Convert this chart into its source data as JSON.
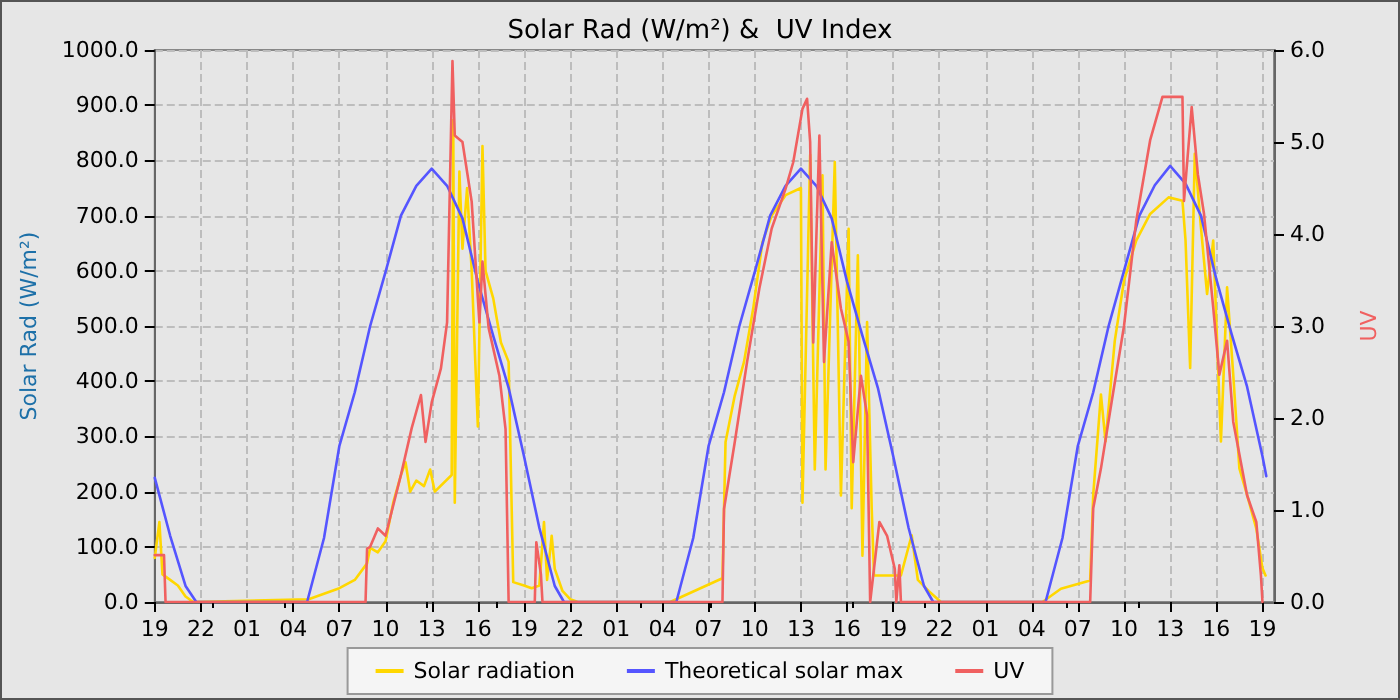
{
  "chart_data": {
    "type": "line",
    "title": "Solar Rad (W/m²) &  UV Index",
    "ylabel": "Solar Rad (W/m²)",
    "y2label": "UV",
    "xlim": [
      "--01-01T19:00",
      "--01-04T19:45"
    ],
    "xticks": [
      {
        "value": "--01-01T19:00",
        "label": "19"
      },
      {
        "value": "--01-01T22:00",
        "label": "22"
      },
      {
        "value": "--01-02T01:00",
        "label": "01"
      },
      {
        "value": "--01-02T04:00",
        "label": "04"
      },
      {
        "value": "--01-02T07:00",
        "label": "07"
      },
      {
        "value": "--01-02T10:00",
        "label": "10"
      },
      {
        "value": "--01-02T13:00",
        "label": "13"
      },
      {
        "value": "--01-02T16:00",
        "label": "16"
      },
      {
        "value": "--01-02T19:00",
        "label": "19"
      },
      {
        "value": "--01-02T22:00",
        "label": "22"
      },
      {
        "value": "--01-03T01:00",
        "label": "01"
      },
      {
        "value": "--01-03T04:00",
        "label": "04"
      },
      {
        "value": "--01-03T07:00",
        "label": "07"
      },
      {
        "value": "--01-03T10:00",
        "label": "10"
      },
      {
        "value": "--01-03T13:00",
        "label": "13"
      },
      {
        "value": "--01-03T16:00",
        "label": "16"
      },
      {
        "value": "--01-03T19:00",
        "label": "19"
      },
      {
        "value": "--01-03T22:00",
        "label": "22"
      },
      {
        "value": "--01-04T01:00",
        "label": "01"
      },
      {
        "value": "--01-04T04:00",
        "label": "04"
      },
      {
        "value": "--01-04T07:00",
        "label": "07"
      },
      {
        "value": "--01-04T10:00",
        "label": "10"
      },
      {
        "value": "--01-04T13:00",
        "label": "13"
      },
      {
        "value": "--01-04T16:00",
        "label": "16"
      },
      {
        "value": "--01-04T19:00",
        "label": "19"
      }
    ],
    "ylim": [
      0,
      1000
    ],
    "yticks": [
      {
        "value": 0,
        "label": "0.0"
      },
      {
        "value": 100,
        "label": "100.0"
      },
      {
        "value": 200,
        "label": "200.0"
      },
      {
        "value": 300,
        "label": "300.0"
      },
      {
        "value": 400,
        "label": "400.0"
      },
      {
        "value": 500,
        "label": "500.0"
      },
      {
        "value": 600,
        "label": "600.0"
      },
      {
        "value": 700,
        "label": "700.0"
      },
      {
        "value": 800,
        "label": "800.0"
      },
      {
        "value": 900,
        "label": "900.0"
      },
      {
        "value": 1000,
        "label": "1000.0"
      }
    ],
    "y2lim": [
      0,
      6
    ],
    "y2ticks": [
      {
        "value": 0,
        "label": "0.0"
      },
      {
        "value": 1,
        "label": "1.0"
      },
      {
        "value": 2,
        "label": "2.0"
      },
      {
        "value": 3,
        "label": "3.0"
      },
      {
        "value": 4,
        "label": "4.0"
      },
      {
        "value": 5,
        "label": "5.0"
      },
      {
        "value": 6,
        "label": "6.0"
      }
    ],
    "grid": true,
    "legend": "bottom",
    "marker": "none",
    "line_style": "solid",
    "series": [
      {
        "name": "Solar radiation",
        "color": "#ffd700",
        "x": [
          "--01-01T19:00",
          "--01-01T19:18",
          "--01-01T19:30",
          "--01-01T20:00",
          "--01-01T20:30",
          "--01-01T21:00",
          "--01-01T21:30",
          "--01-02T05:00",
          "--01-02T06:00",
          "--01-02T07:00",
          "--01-02T08:00",
          "--01-02T08:48",
          "--01-02T09:00",
          "--01-02T09:30",
          "--01-02T10:00",
          "--01-02T10:30",
          "--01-02T11:00",
          "--01-02T11:18",
          "--01-02T11:36",
          "--01-02T12:00",
          "--01-02T12:30",
          "--01-02T12:54",
          "--01-02T13:12",
          "--01-02T14:18",
          "--01-02T14:24",
          "--01-02T14:30",
          "--01-02T14:48",
          "--01-02T15:00",
          "--01-02T15:18",
          "--01-02T15:36",
          "--01-02T16:00",
          "--01-02T16:18",
          "--01-02T16:30",
          "--01-02T17:00",
          "--01-02T17:30",
          "--01-02T18:00",
          "--01-02T18:18",
          "--01-02T19:00",
          "--01-02T19:30",
          "--01-02T20:00",
          "--01-02T20:18",
          "--01-02T20:30",
          "--01-02T20:48",
          "--01-02T21:00",
          "--01-02T21:30",
          "--01-02T22:00",
          "--01-02T22:30",
          "--01-03T04:30",
          "--01-03T07:54",
          "--01-03T08:06",
          "--01-03T08:42",
          "--01-03T09:18",
          "--01-03T09:54",
          "--01-03T10:30",
          "--01-03T11:06",
          "--01-03T12:00",
          "--01-03T13:00",
          "--01-03T13:06",
          "--01-03T13:36",
          "--01-03T13:54",
          "--01-03T14:24",
          "--01-03T14:36",
          "--01-03T15:12",
          "--01-03T15:36",
          "--01-03T16:06",
          "--01-03T16:18",
          "--01-03T16:42",
          "--01-03T17:00",
          "--01-03T17:18",
          "--01-03T17:36",
          "--01-03T17:45",
          "--01-03T18:30",
          "--01-03T19:30",
          "--01-03T20:12",
          "--01-03T20:36",
          "--01-03T21:18",
          "--01-03T22:06",
          "--01-04T04:42",
          "--01-04T05:54",
          "--01-04T07:48",
          "--01-04T08:00",
          "--01-04T08:30",
          "--01-04T08:48",
          "--01-04T09:24",
          "--01-04T10:00",
          "--01-04T10:48",
          "--01-04T11:42",
          "--01-04T12:54",
          "--01-04T13:48",
          "--01-04T14:00",
          "--01-04T14:18",
          "--01-04T14:36",
          "--01-04T15:00",
          "--01-04T15:24",
          "--01-04T15:48",
          "--01-04T16:18",
          "--01-04T16:42",
          "--01-04T17:06",
          "--01-04T17:30",
          "--01-04T18:00",
          "--01-04T18:36",
          "--01-04T19:00",
          "--01-04T19:12"
        ],
        "values": [
          80,
          145,
          50,
          40,
          30,
          10,
          0,
          5,
          15,
          25,
          40,
          70,
          98,
          90,
          110,
          180,
          230,
          253,
          200,
          220,
          210,
          240,
          200,
          230,
          873,
          180,
          780,
          640,
          750,
          600,
          318,
          826,
          600,
          550,
          470,
          435,
          36,
          30,
          25,
          30,
          145,
          40,
          120,
          60,
          20,
          5,
          0,
          0,
          43,
          290,
          374,
          435,
          532,
          652,
          700,
          737,
          750,
          180,
          810,
          240,
          773,
          240,
          797,
          193,
          676,
          170,
          628,
          84,
          507,
          170,
          48,
          48,
          48,
          121,
          40,
          20,
          0,
          0,
          24,
          39,
          194,
          376,
          291,
          473,
          582,
          655,
          703,
          733,
          727,
          655,
          424,
          812,
          679,
          558,
          655,
          291,
          570,
          412,
          242,
          194,
          133,
          61,
          48
        ]
      },
      {
        "name": "Theoretical solar max",
        "color": "#5555ff",
        "x": [
          "--01-01T19:00",
          "--01-01T20:00",
          "--01-01T21:00",
          "--01-01T21:42",
          "--01-02T04:54",
          "--01-02T06:00",
          "--01-02T07:00",
          "--01-02T08:00",
          "--01-02T09:00",
          "--01-02T10:00",
          "--01-02T11:00",
          "--01-02T12:00",
          "--01-02T13:00",
          "--01-02T14:00",
          "--01-02T15:00",
          "--01-02T16:00",
          "--01-02T17:00",
          "--01-02T18:00",
          "--01-02T19:00",
          "--01-02T20:00",
          "--01-02T21:00",
          "--01-02T21:36",
          "--01-03T04:54",
          "--01-03T06:00",
          "--01-03T07:00",
          "--01-03T08:00",
          "--01-03T09:00",
          "--01-03T10:00",
          "--01-03T11:00",
          "--01-03T12:00",
          "--01-03T13:00",
          "--01-03T14:00",
          "--01-03T15:00",
          "--01-03T16:00",
          "--01-03T17:00",
          "--01-03T18:00",
          "--01-03T19:00",
          "--01-03T20:00",
          "--01-03T21:00",
          "--01-03T21:36",
          "--01-04T04:54",
          "--01-04T06:00",
          "--01-04T07:00",
          "--01-04T08:00",
          "--01-04T09:00",
          "--01-04T10:00",
          "--01-04T11:00",
          "--01-04T12:00",
          "--01-04T13:00",
          "--01-04T14:00",
          "--01-04T15:00",
          "--01-04T16:00",
          "--01-04T17:00",
          "--01-04T18:00",
          "--01-04T19:00",
          "--01-04T19:15"
        ],
        "values": [
          225,
          120,
          29,
          0,
          0,
          116,
          283,
          380,
          500,
          598,
          700,
          754,
          785,
          754,
          695,
          580,
          482,
          388,
          264,
          134,
          29,
          0,
          0,
          116,
          283,
          380,
          500,
          598,
          700,
          754,
          785,
          754,
          695,
          580,
          482,
          388,
          264,
          134,
          29,
          0,
          0,
          116,
          283,
          380,
          500,
          600,
          700,
          755,
          790,
          758,
          700,
          585,
          485,
          390,
          264,
          228
        ]
      },
      {
        "name": "UV",
        "color": "#f06060",
        "axis": "y2",
        "x": [
          "--01-01T19:00",
          "--01-01T19:36",
          "--01-01T19:42",
          "--01-02T08:42",
          "--01-02T08:48",
          "--01-02T09:00",
          "--01-02T09:30",
          "--01-02T10:00",
          "--01-02T11:00",
          "--01-02T11:42",
          "--01-02T12:18",
          "--01-02T12:36",
          "--01-02T13:00",
          "--01-02T13:36",
          "--01-02T14:00",
          "--01-02T14:21",
          "--01-02T14:30",
          "--01-02T15:00",
          "--01-02T15:36",
          "--01-02T16:06",
          "--01-02T16:18",
          "--01-02T16:42",
          "--01-02T17:24",
          "--01-02T17:48",
          "--01-02T18:00",
          "--01-02T19:42",
          "--01-02T19:48",
          "--01-02T20:06",
          "--01-02T20:12",
          "--01-03T07:54",
          "--01-03T08:00",
          "--01-03T08:42",
          "--01-03T09:30",
          "--01-03T10:18",
          "--01-03T11:06",
          "--01-03T12:00",
          "--01-03T12:30",
          "--01-03T13:06",
          "--01-03T13:24",
          "--01-03T13:36",
          "--01-03T13:48",
          "--01-03T14:12",
          "--01-03T14:30",
          "--01-03T15:00",
          "--01-03T15:36",
          "--01-03T16:06",
          "--01-03T16:24",
          "--01-03T16:54",
          "--01-03T17:18",
          "--01-03T17:30",
          "--01-03T18:06",
          "--01-03T18:36",
          "--01-03T19:06",
          "--01-03T19:12",
          "--01-03T19:24",
          "--01-03T19:30",
          "--01-04T07:48",
          "--01-04T08:00",
          "--01-04T08:30",
          "--01-04T09:12",
          "--01-04T10:00",
          "--01-04T10:48",
          "--01-04T11:42",
          "--01-04T12:30",
          "--01-04T13:48",
          "--01-04T13:54",
          "--01-04T14:24",
          "--01-04T14:48",
          "--01-04T15:12",
          "--01-04T15:48",
          "--01-04T16:12",
          "--01-04T16:42",
          "--01-04T17:06",
          "--01-04T18:00",
          "--01-04T18:36",
          "--01-04T18:54",
          "--01-04T19:00"
        ],
        "values": [
          0.51,
          0.51,
          0,
          0,
          0.58,
          0.6,
          0.8,
          0.72,
          1.38,
          1.89,
          2.25,
          1.74,
          2.17,
          2.54,
          3.04,
          5.88,
          5.07,
          5.0,
          4.35,
          3.04,
          3.7,
          2.98,
          2.46,
          1.88,
          0,
          0,
          0.65,
          0.3,
          0,
          0,
          1.01,
          1.74,
          2.61,
          3.41,
          4.06,
          4.49,
          4.78,
          5.36,
          5.47,
          5.0,
          2.82,
          5.07,
          2.61,
          3.91,
          3.19,
          2.83,
          1.52,
          2.46,
          2.03,
          0,
          0.87,
          0.72,
          0.36,
          0,
          0.4,
          0,
          0,
          1.02,
          1.45,
          2.18,
          3.0,
          4.15,
          5.02,
          5.49,
          5.49,
          4.36,
          5.38,
          4.65,
          4.22,
          3.2,
          2.47,
          2.84,
          1.96,
          1.16,
          0.87,
          0.29,
          0
        ]
      }
    ]
  }
}
